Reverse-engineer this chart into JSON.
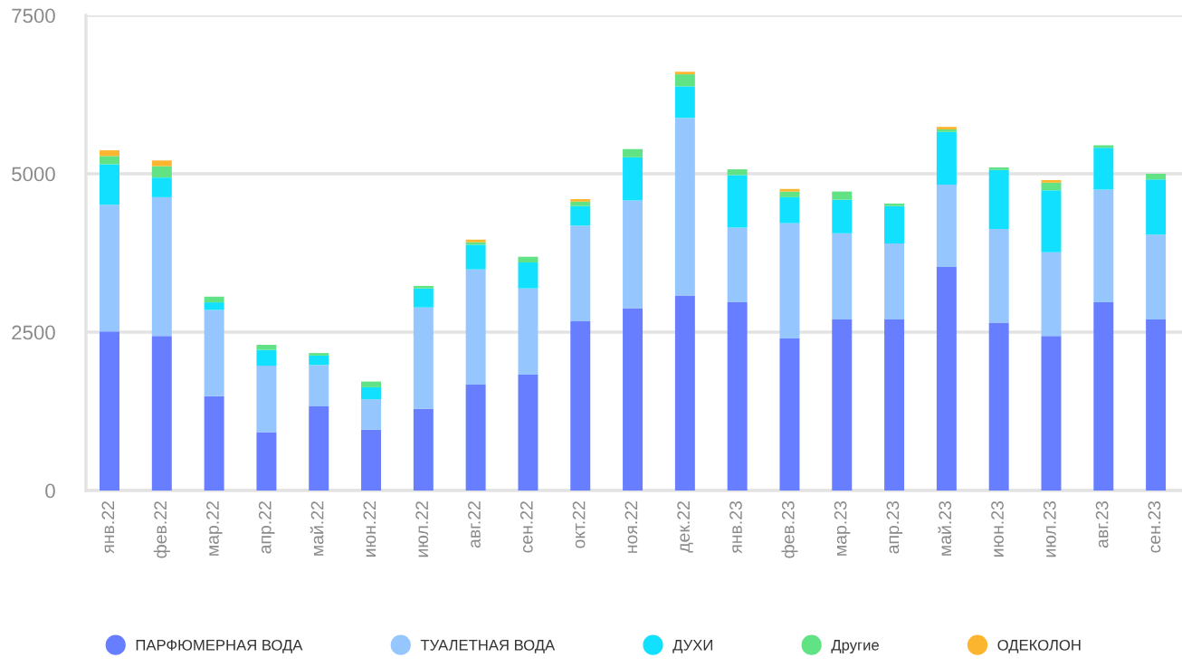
{
  "chart_data": {
    "type": "bar",
    "stacked": true,
    "categories": [
      "янв.22",
      "фев.22",
      "мар.22",
      "апр.22",
      "май.22",
      "июн.22",
      "июл.22",
      "авг.22",
      "сен.22",
      "окт.22",
      "ноя.22",
      "дек.22",
      "янв.23",
      "фев.23",
      "мар.23",
      "апр.23",
      "май.23",
      "июн.23",
      "июл.23",
      "авг.23",
      "сен.23"
    ],
    "series": [
      {
        "name": "ПАРФЮМЕРНАЯ ВОДА",
        "color": "#667eff",
        "values": [
          2510,
          2440,
          1490,
          920,
          1330,
          960,
          1290,
          1670,
          1830,
          2670,
          2880,
          3080,
          2970,
          2400,
          2700,
          2700,
          3530,
          2650,
          2440,
          2970,
          2700
        ]
      },
      {
        "name": "ТУАЛЕТНАЯ ВОДА",
        "color": "#96c6fe",
        "values": [
          2000,
          2190,
          1360,
          1050,
          650,
          480,
          1600,
          1820,
          1360,
          1510,
          1700,
          2800,
          1180,
          1820,
          1360,
          1200,
          1300,
          1480,
          1320,
          1780,
          1340
        ]
      },
      {
        "name": "ДУХИ",
        "color": "#12e0ff",
        "values": [
          640,
          310,
          120,
          250,
          150,
          190,
          300,
          390,
          410,
          310,
          680,
          500,
          830,
          410,
          530,
          590,
          830,
          930,
          980,
          660,
          870
        ]
      },
      {
        "name": "Другие",
        "color": "#60e285",
        "values": [
          130,
          180,
          90,
          80,
          40,
          90,
          40,
          40,
          90,
          70,
          130,
          190,
          90,
          90,
          130,
          40,
          40,
          40,
          120,
          40,
          90
        ]
      },
      {
        "name": "ОДЕКОЛОН",
        "color": "#fcb52e",
        "values": [
          90,
          90,
          0,
          0,
          0,
          0,
          0,
          40,
          0,
          40,
          0,
          40,
          0,
          40,
          0,
          0,
          40,
          0,
          40,
          0,
          0
        ]
      }
    ],
    "ylim": [
      0,
      7500
    ],
    "yticks": [
      0,
      2500,
      5000,
      7500
    ],
    "grid": "y",
    "legend": "bottom"
  }
}
